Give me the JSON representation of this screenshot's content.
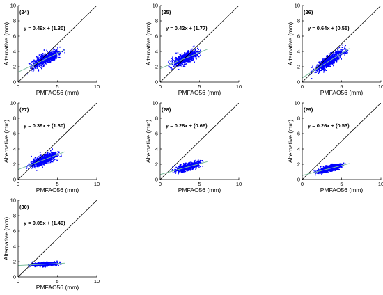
{
  "chart_data": [
    {
      "type": "scatter",
      "panel_label": "(24)",
      "equation": "y = 0.49x + (1.30)",
      "slope": 0.49,
      "intercept": 1.3,
      "xlabel": "PMFAO56 (mm)",
      "ylabel": "Alternative (mm)",
      "xlim": [
        0,
        10
      ],
      "ylim": [
        0,
        10
      ],
      "xticks": [
        "0",
        "5",
        "10"
      ],
      "yticks": [
        "0",
        "2",
        "4",
        "6",
        "8",
        "10"
      ],
      "cloud": {
        "x_range": [
          1.0,
          6.0
        ],
        "y_center_offset": 0.0,
        "y_spread": 0.55
      }
    },
    {
      "type": "scatter",
      "panel_label": "(25)",
      "equation": "y = 0.42x + (1.77)",
      "slope": 0.42,
      "intercept": 1.77,
      "xlabel": "PMFAO56 (mm)",
      "ylabel": "Alternative (mm)",
      "xlim": [
        0,
        10
      ],
      "ylim": [
        0,
        10
      ],
      "xticks": [
        "0",
        "5",
        "10"
      ],
      "yticks": [
        "0",
        "2",
        "4",
        "6",
        "8",
        "10"
      ],
      "cloud": {
        "x_range": [
          1.0,
          5.5
        ],
        "y_center_offset": 0.0,
        "y_spread": 0.55
      }
    },
    {
      "type": "scatter",
      "panel_label": "(26)",
      "equation": "y = 0.64x + (0.55)",
      "slope": 0.64,
      "intercept": 0.55,
      "xlabel": "PMFAO56 (mm)",
      "ylabel": "Alternative (mm)",
      "xlim": [
        0,
        10
      ],
      "ylim": [
        0,
        10
      ],
      "xticks": [
        "0",
        "5",
        "10"
      ],
      "yticks": [
        "0",
        "2",
        "4",
        "6",
        "8",
        "10"
      ],
      "cloud": {
        "x_range": [
          1.0,
          5.8
        ],
        "y_center_offset": 0.0,
        "y_spread": 0.6
      }
    },
    {
      "type": "scatter",
      "panel_label": "(27)",
      "equation": "y = 0.39x + (1.30)",
      "slope": 0.39,
      "intercept": 1.3,
      "xlabel": "PMFAO56 (mm)",
      "ylabel": "Alternative (mm)",
      "xlim": [
        0,
        10
      ],
      "ylim": [
        0,
        10
      ],
      "xticks": [
        "0",
        "5",
        "10"
      ],
      "yticks": [
        "0",
        "2",
        "4",
        "6",
        "8",
        "10"
      ],
      "cloud": {
        "x_range": [
          1.0,
          5.5
        ],
        "y_center_offset": 0.0,
        "y_spread": 0.5
      }
    },
    {
      "type": "scatter",
      "panel_label": "(28)",
      "equation": "y = 0.28x + (0.66)",
      "slope": 0.28,
      "intercept": 0.66,
      "xlabel": "PMFAO56 (mm)",
      "ylabel": "Alternative (mm)",
      "xlim": [
        0,
        10
      ],
      "ylim": [
        0,
        10
      ],
      "xticks": [
        "0",
        "5",
        "10"
      ],
      "yticks": [
        "0",
        "2",
        "4",
        "6",
        "8",
        "10"
      ],
      "cloud": {
        "x_range": [
          1.5,
          5.5
        ],
        "y_center_offset": 0.0,
        "y_spread": 0.35
      }
    },
    {
      "type": "scatter",
      "panel_label": "(29)",
      "equation": "y = 0.26x + (0.53)",
      "slope": 0.26,
      "intercept": 0.53,
      "xlabel": "PMFAO56 (mm)",
      "ylabel": "Alternative (mm)",
      "xlim": [
        0,
        10
      ],
      "ylim": [
        0,
        10
      ],
      "xticks": [
        "0",
        "5",
        "10"
      ],
      "yticks": [
        "0",
        "2",
        "4",
        "6",
        "8",
        "10"
      ],
      "cloud": {
        "x_range": [
          1.3,
          5.6
        ],
        "y_center_offset": 0.0,
        "y_spread": 0.3
      }
    },
    {
      "type": "scatter",
      "panel_label": "(30)",
      "equation": "y = 0.05x + (1.49)",
      "slope": 0.05,
      "intercept": 1.49,
      "xlabel": "PMFAO56 (mm)",
      "ylabel": "Alternative (mm)",
      "xlim": [
        0,
        10
      ],
      "ylim": [
        0,
        10
      ],
      "xticks": [
        "0",
        "5",
        "10"
      ],
      "yticks": [
        "0",
        "2",
        "4",
        "6",
        "8",
        "10"
      ],
      "cloud": {
        "x_range": [
          1.2,
          5.6
        ],
        "y_center_offset": 0.0,
        "y_spread": 0.18
      }
    }
  ],
  "colors": {
    "points": "#0000ff",
    "fit_line": "#7fbf9f",
    "identity_line": "#000000",
    "axes": "#000000"
  }
}
